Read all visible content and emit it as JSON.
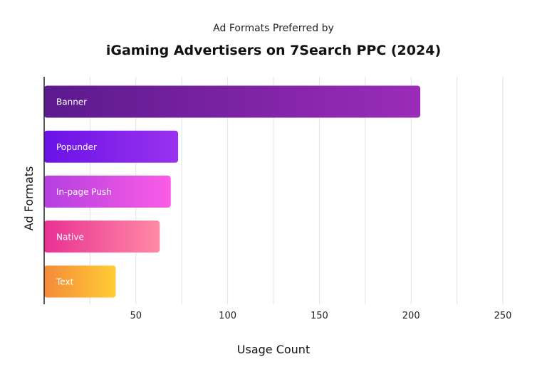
{
  "chart_data": {
    "type": "bar",
    "orientation": "horizontal",
    "title": "iGaming Advertisers on 7Search PPC (2024)",
    "subtitle": "Ad Formats Preferred by",
    "xlabel": "Usage Count",
    "ylabel": "Ad Formats",
    "xlim": [
      0,
      250
    ],
    "xticks": [
      50,
      100,
      150,
      200,
      250
    ],
    "xtick_labels": [
      "50",
      "100",
      "150",
      "200",
      "250"
    ],
    "grid": true,
    "categories": [
      "Banner",
      "Popunder",
      "In-page Push",
      "Native",
      "Text"
    ],
    "values": [
      205,
      73,
      69,
      63,
      39
    ],
    "colors": [
      [
        "#5b1a8e",
        "#9b2cb8"
      ],
      [
        "#6a12e6",
        "#9a32ee"
      ],
      [
        "#b43fe0",
        "#fb5ce6"
      ],
      [
        "#e93193",
        "#ff8aa6"
      ],
      [
        "#f48a3a",
        "#ffcd35"
      ]
    ]
  }
}
